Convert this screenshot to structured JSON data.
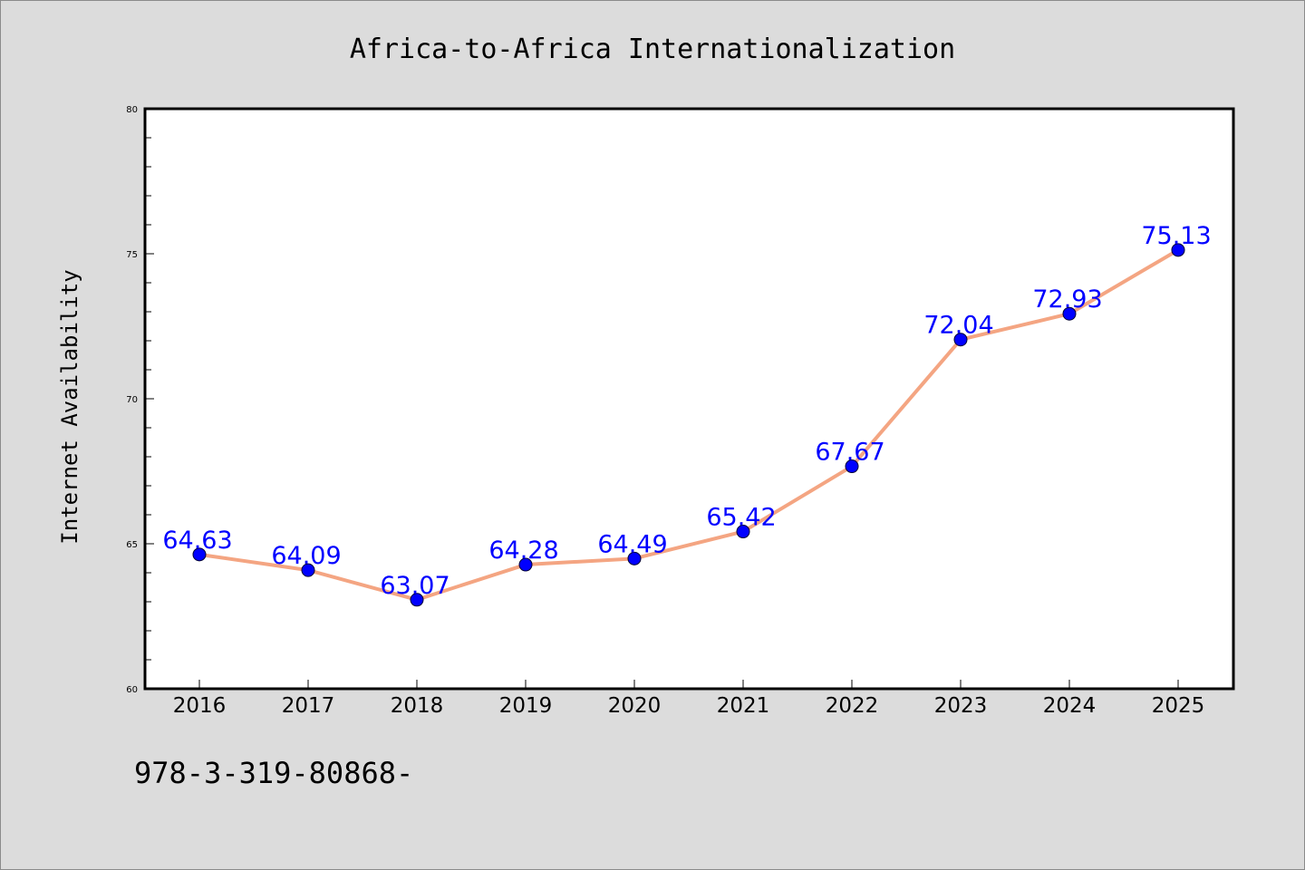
{
  "chart_data": {
    "type": "line",
    "title": "Africa-to-Africa Internationalization",
    "xlabel": "",
    "ylabel": "Internet Availability",
    "categories": [
      "2016",
      "2017",
      "2018",
      "2019",
      "2020",
      "2021",
      "2022",
      "2023",
      "2024",
      "2025"
    ],
    "series": [
      {
        "values": [
          64.63,
          64.09,
          63.07,
          64.28,
          64.49,
          65.42,
          67.67,
          72.04,
          72.93,
          75.13
        ],
        "line_color": "#f4a582",
        "marker_color": "#0000ff",
        "label_color": "#0000ff"
      }
    ],
    "ylim": [
      60,
      80
    ],
    "y_major_ticks": [
      60,
      65,
      70,
      75,
      80
    ],
    "y_minor_step": 1,
    "grid": false,
    "legend": "none",
    "data_labels": true
  },
  "footer": {
    "text": "978-3-319-80868-"
  },
  "colors": {
    "page_background": "#dcdcdc",
    "plot_background": "#ffffff"
  }
}
